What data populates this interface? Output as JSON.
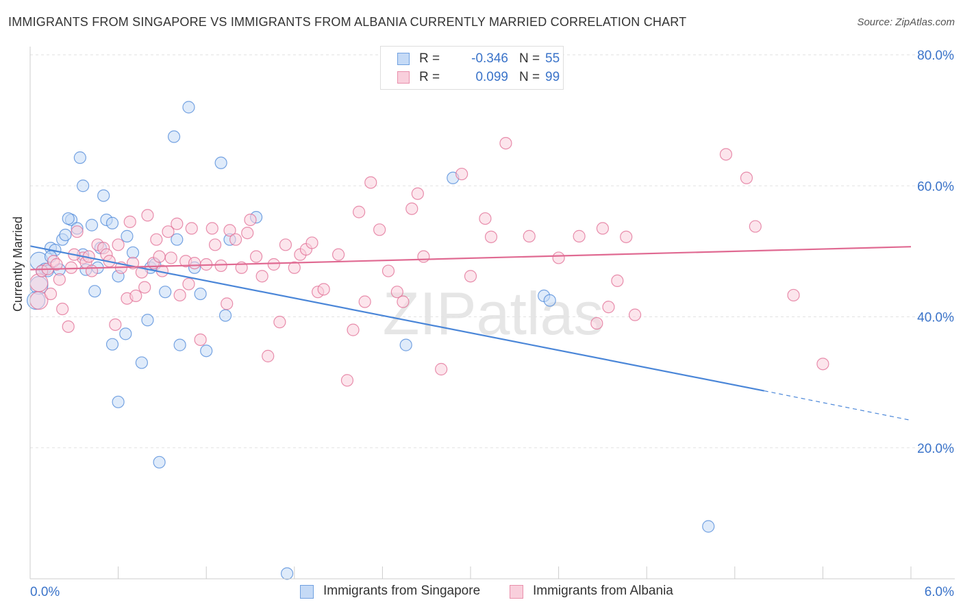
{
  "title": "IMMIGRANTS FROM SINGAPORE VS IMMIGRANTS FROM ALBANIA CURRENTLY MARRIED CORRELATION CHART",
  "source": "Source: ZipAtlas.com",
  "watermark": "ZIPatlas",
  "legend": {
    "r_label": "R =",
    "n_label": "N =",
    "rows": [
      {
        "r": "-0.346",
        "n": "55",
        "color": "#6fa0e0",
        "fill": "#c5daf6"
      },
      {
        "r": "0.099",
        "n": "99",
        "color": "#e98fab",
        "fill": "#f9cfdc"
      }
    ]
  },
  "bottom_legend": [
    {
      "label": "Immigrants from Singapore"
    },
    {
      "label": "Immigrants from Albania"
    }
  ],
  "chart_data": {
    "type": "scatter",
    "title": "IMMIGRANTS FROM SINGAPORE VS IMMIGRANTS FROM ALBANIA CURRENTLY MARRIED CORRELATION CHART",
    "xlabel": "",
    "ylabel": "Currently Married",
    "xlim": [
      0,
      6
    ],
    "ylim": [
      0,
      80
    ],
    "x_tick_labels": [
      "0.0%",
      "6.0%"
    ],
    "y_ticks": [
      20,
      40,
      60,
      80
    ],
    "y_tick_labels": [
      "20.0%",
      "40.0%",
      "60.0%",
      "80.0%"
    ],
    "grid": true,
    "series": [
      {
        "name": "Immigrants from Singapore",
        "color": "#4a86d8",
        "fill": "#c5daf6",
        "trend": {
          "x": [
            0.0,
            5.0
          ],
          "y": [
            50.8,
            28.7
          ],
          "dash_to_x": 6.0,
          "dash_to_y": 24.2
        },
        "points": [
          [
            0.06,
            48.5
          ],
          [
            0.06,
            44.8
          ],
          [
            0.04,
            42.5
          ],
          [
            0.1,
            47.3
          ],
          [
            0.12,
            47.0
          ],
          [
            0.14,
            50.5
          ],
          [
            0.17,
            50.2
          ],
          [
            0.2,
            47.2
          ],
          [
            0.22,
            51.8
          ],
          [
            0.24,
            52.5
          ],
          [
            0.28,
            54.8
          ],
          [
            0.32,
            53.5
          ],
          [
            0.34,
            64.3
          ],
          [
            0.36,
            49.5
          ],
          [
            0.38,
            47.2
          ],
          [
            0.42,
            54.0
          ],
          [
            0.46,
            47.5
          ],
          [
            0.48,
            50.5
          ],
          [
            0.5,
            58.5
          ],
          [
            0.52,
            54.8
          ],
          [
            0.56,
            54.3
          ],
          [
            0.6,
            46.2
          ],
          [
            0.66,
            52.3
          ],
          [
            0.7,
            49.8
          ],
          [
            0.76,
            33.0
          ],
          [
            0.8,
            39.5
          ],
          [
            0.82,
            47.5
          ],
          [
            0.85,
            48.0
          ],
          [
            0.88,
            17.8
          ],
          [
            0.92,
            43.8
          ],
          [
            0.98,
            67.5
          ],
          [
            1.0,
            51.8
          ],
          [
            1.02,
            35.7
          ],
          [
            1.08,
            72.0
          ],
          [
            1.12,
            47.5
          ],
          [
            1.16,
            43.5
          ],
          [
            1.2,
            34.8
          ],
          [
            1.3,
            63.5
          ],
          [
            1.33,
            40.2
          ],
          [
            1.36,
            51.8
          ],
          [
            1.54,
            55.2
          ],
          [
            1.75,
            0.8
          ],
          [
            0.6,
            27.0
          ],
          [
            0.56,
            35.8
          ],
          [
            0.65,
            37.4
          ],
          [
            0.44,
            43.9
          ],
          [
            0.26,
            55.0
          ],
          [
            0.36,
            60.0
          ],
          [
            2.56,
            35.7
          ],
          [
            2.88,
            61.2
          ],
          [
            3.5,
            43.2
          ],
          [
            3.54,
            42.5
          ],
          [
            4.62,
            8.0
          ],
          [
            0.08,
            47.0
          ],
          [
            0.14,
            49.2
          ]
        ]
      },
      {
        "name": "Immigrants from Albania",
        "color": "#e06a92",
        "fill": "#f9cfdc",
        "trend": {
          "x": [
            0.0,
            6.0
          ],
          "y": [
            47.2,
            50.7
          ]
        },
        "points": [
          [
            0.06,
            45.2
          ],
          [
            0.06,
            42.5
          ],
          [
            0.08,
            47.0
          ],
          [
            0.12,
            47.3
          ],
          [
            0.14,
            43.5
          ],
          [
            0.16,
            48.5
          ],
          [
            0.2,
            45.7
          ],
          [
            0.22,
            41.2
          ],
          [
            0.26,
            38.5
          ],
          [
            0.28,
            47.5
          ],
          [
            0.32,
            53.0
          ],
          [
            0.36,
            49.0
          ],
          [
            0.38,
            48.3
          ],
          [
            0.42,
            47.0
          ],
          [
            0.46,
            51.0
          ],
          [
            0.5,
            50.5
          ],
          [
            0.52,
            49.5
          ],
          [
            0.54,
            48.5
          ],
          [
            0.58,
            38.8
          ],
          [
            0.6,
            51.0
          ],
          [
            0.62,
            47.5
          ],
          [
            0.66,
            42.8
          ],
          [
            0.7,
            48.2
          ],
          [
            0.72,
            43.2
          ],
          [
            0.76,
            46.8
          ],
          [
            0.8,
            55.5
          ],
          [
            0.84,
            48.2
          ],
          [
            0.86,
            51.8
          ],
          [
            0.88,
            49.2
          ],
          [
            0.9,
            47.0
          ],
          [
            0.94,
            53.0
          ],
          [
            0.96,
            49.0
          ],
          [
            1.0,
            54.2
          ],
          [
            1.02,
            43.3
          ],
          [
            1.06,
            48.5
          ],
          [
            1.08,
            45.0
          ],
          [
            1.12,
            48.2
          ],
          [
            1.16,
            36.5
          ],
          [
            1.2,
            48.0
          ],
          [
            1.24,
            53.5
          ],
          [
            1.26,
            51.0
          ],
          [
            1.3,
            47.8
          ],
          [
            1.34,
            42.0
          ],
          [
            1.36,
            53.2
          ],
          [
            1.4,
            51.8
          ],
          [
            1.44,
            47.5
          ],
          [
            1.48,
            52.8
          ],
          [
            1.5,
            54.8
          ],
          [
            1.54,
            49.2
          ],
          [
            1.58,
            46.2
          ],
          [
            1.62,
            34.0
          ],
          [
            1.66,
            48.0
          ],
          [
            1.7,
            39.2
          ],
          [
            1.74,
            51.0
          ],
          [
            1.8,
            47.5
          ],
          [
            1.84,
            49.5
          ],
          [
            1.88,
            50.3
          ],
          [
            1.92,
            51.3
          ],
          [
            1.96,
            43.8
          ],
          [
            2.0,
            44.2
          ],
          [
            2.1,
            49.5
          ],
          [
            2.16,
            30.3
          ],
          [
            2.2,
            38.0
          ],
          [
            2.24,
            56.0
          ],
          [
            2.28,
            42.3
          ],
          [
            2.32,
            60.5
          ],
          [
            2.38,
            53.3
          ],
          [
            2.44,
            47.0
          ],
          [
            2.5,
            43.8
          ],
          [
            2.54,
            42.3
          ],
          [
            2.6,
            56.5
          ],
          [
            2.64,
            58.8
          ],
          [
            2.68,
            49.2
          ],
          [
            2.8,
            32.0
          ],
          [
            2.94,
            61.8
          ],
          [
            3.0,
            46.2
          ],
          [
            3.1,
            55.0
          ],
          [
            3.14,
            52.2
          ],
          [
            3.24,
            66.5
          ],
          [
            3.4,
            52.3
          ],
          [
            3.6,
            49.0
          ],
          [
            3.74,
            52.3
          ],
          [
            3.86,
            39.0
          ],
          [
            3.9,
            53.5
          ],
          [
            3.94,
            41.5
          ],
          [
            4.0,
            45.5
          ],
          [
            4.06,
            52.2
          ],
          [
            4.12,
            40.3
          ],
          [
            4.74,
            64.8
          ],
          [
            4.88,
            61.2
          ],
          [
            4.94,
            53.8
          ],
          [
            5.2,
            43.3
          ],
          [
            5.4,
            32.8
          ],
          [
            0.3,
            49.5
          ],
          [
            0.4,
            49.2
          ],
          [
            0.18,
            48.0
          ],
          [
            0.68,
            54.5
          ],
          [
            0.78,
            44.5
          ],
          [
            1.1,
            53.5
          ]
        ]
      }
    ]
  }
}
